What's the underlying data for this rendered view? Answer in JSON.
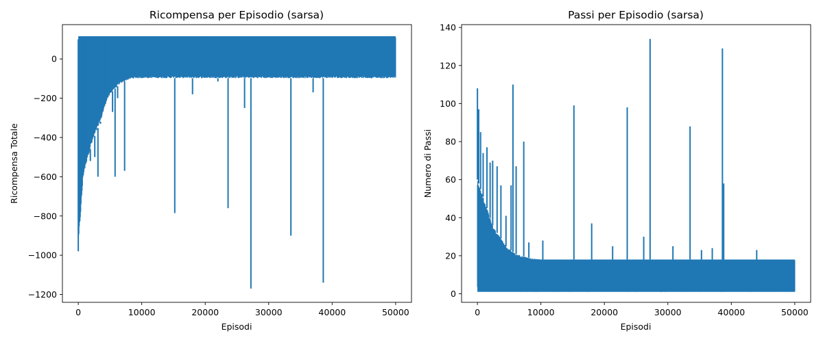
{
  "chart_data": [
    {
      "type": "line",
      "title": "Ricompensa per Episodio (sarsa)",
      "xlabel": "Episodi",
      "ylabel": "Ricompensa Totale",
      "xlim": [
        -2500,
        52500
      ],
      "ylim": [
        -1240,
        175
      ],
      "xticks": [
        0,
        10000,
        20000,
        30000,
        40000,
        50000
      ],
      "yticks": [
        -1200,
        -1000,
        -800,
        -600,
        -400,
        -200,
        0
      ],
      "color": "#1f77b4",
      "grid": false,
      "band": [
        {
          "x": 0,
          "lo": -980,
          "hi": 100
        },
        {
          "x": 300,
          "lo": -830,
          "hi": 105
        },
        {
          "x": 800,
          "lo": -600,
          "hi": 108
        },
        {
          "x": 1500,
          "lo": -500,
          "hi": 110
        },
        {
          "x": 2500,
          "lo": -400,
          "hi": 112
        },
        {
          "x": 3500,
          "lo": -320,
          "hi": 113
        },
        {
          "x": 4500,
          "lo": -210,
          "hi": 114
        },
        {
          "x": 5500,
          "lo": -160,
          "hi": 114
        },
        {
          "x": 6500,
          "lo": -130,
          "hi": 115
        },
        {
          "x": 7500,
          "lo": -110,
          "hi": 115
        },
        {
          "x": 8500,
          "lo": -100,
          "hi": 115
        },
        {
          "x": 10000,
          "lo": -98,
          "hi": 116
        },
        {
          "x": 50000,
          "lo": -98,
          "hi": 116
        }
      ],
      "dense_top": 78,
      "dense_bottom": 116,
      "spikes": [
        {
          "x": 0,
          "y": -980
        },
        {
          "x": 200,
          "y": -830
        },
        {
          "x": 400,
          "y": -740
        },
        {
          "x": 900,
          "y": -540
        },
        {
          "x": 1400,
          "y": -480
        },
        {
          "x": 1900,
          "y": -520
        },
        {
          "x": 2600,
          "y": -500
        },
        {
          "x": 3100,
          "y": -600
        },
        {
          "x": 3500,
          "y": -330
        },
        {
          "x": 4200,
          "y": -210
        },
        {
          "x": 5400,
          "y": -270
        },
        {
          "x": 5800,
          "y": -600
        },
        {
          "x": 6200,
          "y": -200
        },
        {
          "x": 7300,
          "y": -570
        },
        {
          "x": 15200,
          "y": -785
        },
        {
          "x": 18000,
          "y": -180
        },
        {
          "x": 22000,
          "y": -115
        },
        {
          "x": 23600,
          "y": -760
        },
        {
          "x": 26200,
          "y": -250
        },
        {
          "x": 27200,
          "y": -1170
        },
        {
          "x": 33500,
          "y": -900
        },
        {
          "x": 37000,
          "y": -170
        },
        {
          "x": 38600,
          "y": -1140
        }
      ],
      "x_max": 50000
    },
    {
      "type": "line",
      "title": "Passi per Episodio (sarsa)",
      "xlabel": "Episodi",
      "ylabel": "Numero di Passi",
      "xlim": [
        -2500,
        52500
      ],
      "ylim": [
        -4.5,
        141.5
      ],
      "xticks": [
        0,
        10000,
        20000,
        30000,
        40000,
        50000
      ],
      "yticks": [
        0,
        20,
        40,
        60,
        80,
        100,
        120,
        140
      ],
      "color": "#1f77b4",
      "grid": false,
      "band": [
        {
          "x": 0,
          "lo": 1,
          "hi": 60
        },
        {
          "x": 500,
          "lo": 1,
          "hi": 55
        },
        {
          "x": 1500,
          "lo": 1,
          "hi": 45
        },
        {
          "x": 2500,
          "lo": 1,
          "hi": 35
        },
        {
          "x": 3500,
          "lo": 1,
          "hi": 30
        },
        {
          "x": 4500,
          "lo": 1,
          "hi": 25
        },
        {
          "x": 6000,
          "lo": 1,
          "hi": 21
        },
        {
          "x": 8000,
          "lo": 1,
          "hi": 19
        },
        {
          "x": 10000,
          "lo": 1,
          "hi": 18
        },
        {
          "x": 50000,
          "lo": 1,
          "hi": 18
        }
      ],
      "dense_top": 1,
      "dense_bottom": 18,
      "spikes": [
        {
          "x": 0,
          "y": 108
        },
        {
          "x": 200,
          "y": 97
        },
        {
          "x": 500,
          "y": 85
        },
        {
          "x": 900,
          "y": 74
        },
        {
          "x": 1500,
          "y": 77
        },
        {
          "x": 2000,
          "y": 69
        },
        {
          "x": 2400,
          "y": 70
        },
        {
          "x": 3100,
          "y": 67
        },
        {
          "x": 3700,
          "y": 57
        },
        {
          "x": 4500,
          "y": 41
        },
        {
          "x": 5300,
          "y": 57
        },
        {
          "x": 5600,
          "y": 110
        },
        {
          "x": 6100,
          "y": 67
        },
        {
          "x": 7300,
          "y": 80
        },
        {
          "x": 8100,
          "y": 27
        },
        {
          "x": 10300,
          "y": 28
        },
        {
          "x": 15200,
          "y": 99
        },
        {
          "x": 18000,
          "y": 37
        },
        {
          "x": 21300,
          "y": 25
        },
        {
          "x": 23600,
          "y": 98
        },
        {
          "x": 26200,
          "y": 30
        },
        {
          "x": 27200,
          "y": 134
        },
        {
          "x": 30800,
          "y": 25
        },
        {
          "x": 33500,
          "y": 88
        },
        {
          "x": 35300,
          "y": 23
        },
        {
          "x": 37000,
          "y": 24
        },
        {
          "x": 38600,
          "y": 129
        },
        {
          "x": 38800,
          "y": 58
        },
        {
          "x": 44000,
          "y": 23
        }
      ],
      "x_max": 50000
    }
  ]
}
